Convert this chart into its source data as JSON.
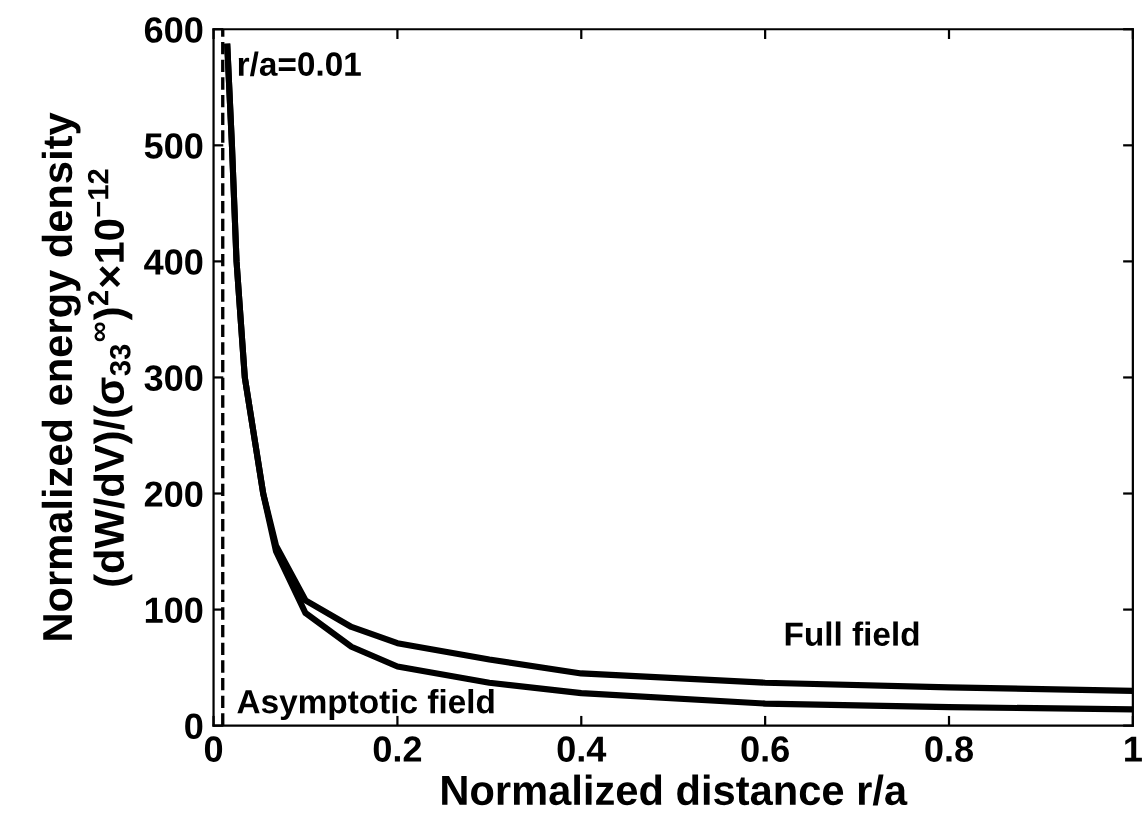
{
  "chart_data": {
    "type": "line",
    "xlabel": "Normalized distance r/a",
    "ylabel": "Normalized energy density\n(dW/dV)/(σ$_{33}$$^{∞}$)$^{2}$×10$^{−12}$",
    "x": [
      0.015,
      0.02,
      0.025,
      0.034,
      0.054,
      0.068,
      0.1,
      0.15,
      0.2,
      0.3,
      0.4,
      0.6,
      0.8,
      1
    ],
    "series": [
      {
        "color": "#000000",
        "values": [
          585,
          500,
          400,
          300,
          200,
          155,
          108,
          85,
          71,
          57,
          45,
          37,
          33,
          30
        ]
      },
      {
        "color": "#000000",
        "values": [
          585,
          500,
          400,
          300,
          200,
          150,
          97,
          68,
          51,
          37,
          28,
          19,
          16,
          14
        ]
      }
    ],
    "annotations": [
      "Full field",
      "Asymptotic field"
    ],
    "ref_lines": [
      {
        "axis": "x",
        "value": 0.01,
        "label": "r/a=0.01",
        "color": "#000000",
        "line_style": "dashed"
      }
    ],
    "xlim": [
      0,
      1
    ],
    "ylim": [
      0,
      600
    ],
    "xticks": [
      0,
      0.2,
      0.4,
      0.6,
      0.8,
      1
    ],
    "yticks": [
      0,
      100,
      200,
      300,
      400,
      500,
      600
    ],
    "grid": false,
    "legend": false,
    "marker": "none",
    "line_style": "solid"
  }
}
